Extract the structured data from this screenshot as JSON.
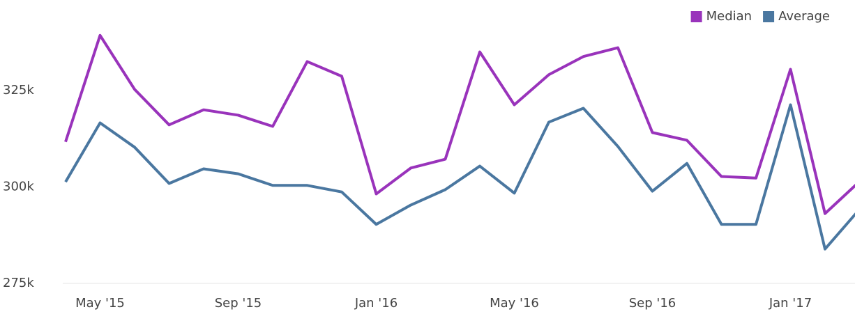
{
  "chart_data": {
    "type": "line",
    "categories": [
      null,
      "May '15",
      null,
      null,
      null,
      "Sep '15",
      null,
      null,
      null,
      "Jan '16",
      null,
      null,
      null,
      "May '16",
      null,
      null,
      null,
      "Sep '16",
      null,
      null,
      null,
      "Jan '17",
      null,
      null
    ],
    "series": [
      {
        "name": "Median",
        "color": "#9933bb",
        "values": [
          311700,
          339300,
          325300,
          316100,
          320000,
          318600,
          315700,
          332500,
          328700,
          298200,
          304900,
          307200,
          335000,
          321300,
          329100,
          333800,
          336100,
          314100,
          312100,
          302700,
          302300,
          330500,
          293100,
          301400
        ]
      },
      {
        "name": "Average",
        "color": "#4a77a0",
        "values": [
          301300,
          316600,
          310300,
          300900,
          304700,
          303400,
          300400,
          300400,
          298700,
          290300,
          295300,
          299300,
          305400,
          298400,
          316800,
          320400,
          310500,
          298900,
          306100,
          290300,
          290300,
          321300,
          283900,
          294200
        ]
      }
    ],
    "ylim": [
      275000,
      345000
    ],
    "yticks": [
      {
        "value": 275000,
        "label": "275k"
      },
      {
        "value": 300000,
        "label": "300k"
      },
      {
        "value": 325000,
        "label": "325k"
      }
    ],
    "legend": "top-right"
  }
}
